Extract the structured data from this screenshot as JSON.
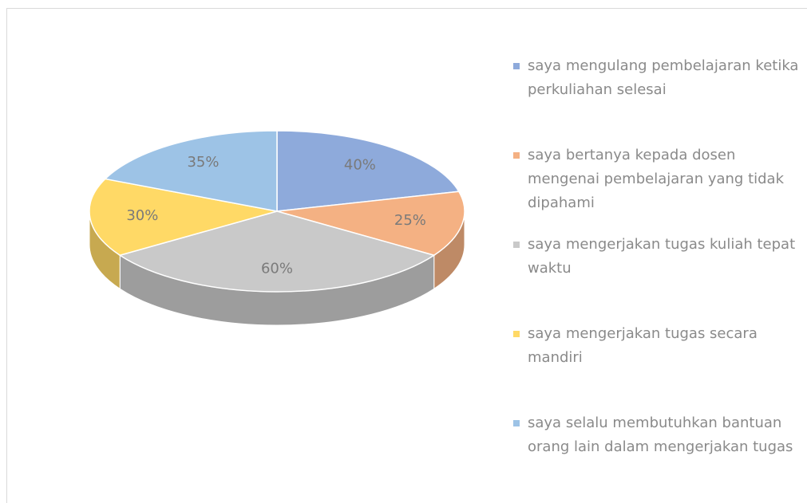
{
  "chart_data": {
    "type": "pie",
    "categories": [
      "saya mengulang pembelajaran ketika perkuliahan selesai",
      "saya bertanya kepada dosen mengenai pembelajaran yang tidak dipahami",
      "saya mengerjakan tugas kuliah tepat waktu",
      "saya mengerjakan tugas secara mandiri",
      "saya selalu membutuhkan bantuan orang lain dalam mengerjakan tugas"
    ],
    "values": [
      40,
      25,
      60,
      30,
      35
    ],
    "value_labels": [
      "40%",
      "25%",
      "60%",
      "30%",
      "35%"
    ],
    "colors": [
      "#8eaadb",
      "#f4b183",
      "#c9c9c9",
      "#ffd966",
      "#9dc3e6"
    ],
    "legend": "right"
  }
}
